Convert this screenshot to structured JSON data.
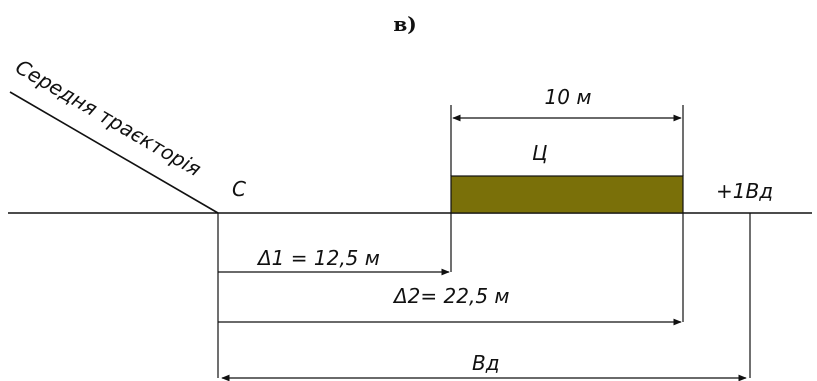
{
  "figure_label": "в)",
  "trajectory_label": "Середня траєкторія",
  "point_c": "С",
  "target_width": "10 м",
  "target_label": "Ц",
  "right_label": "+1Вд",
  "delta1": "Δ1 = 12,5 м",
  "delta2": "Δ2= 22,5 м",
  "bottom_label": "Вд",
  "colors": {
    "target_fill": "#7a7009",
    "line": "#111111"
  }
}
